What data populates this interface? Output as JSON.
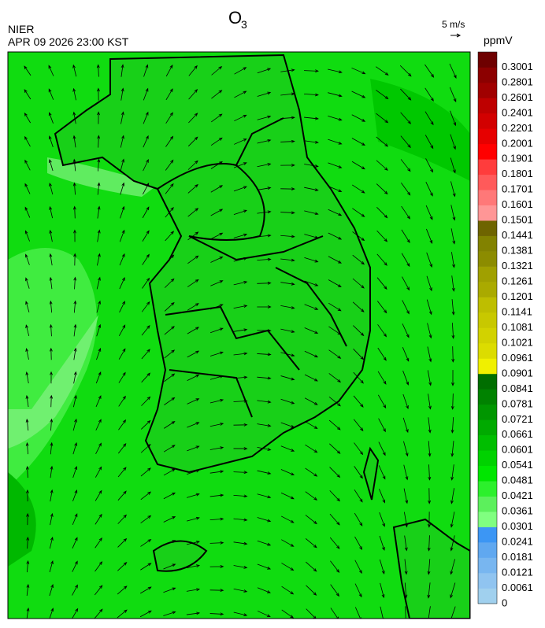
{
  "header": {
    "title": "O",
    "title_sub": "3",
    "agency": "NIER",
    "datetime": "APR 09 2026 23:00 KST"
  },
  "wind_legend": {
    "label": "5 m/s"
  },
  "colorbar": {
    "unit": "ppmV",
    "entries": [
      {
        "label": "0",
        "color": "#a0d0ee"
      },
      {
        "label": "0.0061",
        "color": "#90c4f0"
      },
      {
        "label": "0.0121",
        "color": "#78b6f0"
      },
      {
        "label": "0.0181",
        "color": "#60a8f0"
      },
      {
        "label": "0.0241",
        "color": "#3c96f4"
      },
      {
        "label": "0.0301",
        "color": "#80ff80"
      },
      {
        "label": "0.0361",
        "color": "#5cf05c"
      },
      {
        "label": "0.0421",
        "color": "#2cf02c"
      },
      {
        "label": "0.0481",
        "color": "#00e600"
      },
      {
        "label": "0.0541",
        "color": "#00d200"
      },
      {
        "label": "0.0601",
        "color": "#00be00"
      },
      {
        "label": "0.0661",
        "color": "#00aa00"
      },
      {
        "label": "0.0721",
        "color": "#009600"
      },
      {
        "label": "0.0781",
        "color": "#008200"
      },
      {
        "label": "0.0841",
        "color": "#006e00"
      },
      {
        "label": "0.0901",
        "color": "#f0f000"
      },
      {
        "label": "0.0961",
        "color": "#dcdc00"
      },
      {
        "label": "0.1021",
        "color": "#d2d200"
      },
      {
        "label": "0.1081",
        "color": "#c8c800"
      },
      {
        "label": "0.1141",
        "color": "#bebe00"
      },
      {
        "label": "0.1201",
        "color": "#aaaa00"
      },
      {
        "label": "0.1261",
        "color": "#a0a000"
      },
      {
        "label": "0.1321",
        "color": "#8c8c00"
      },
      {
        "label": "0.1381",
        "color": "#828200"
      },
      {
        "label": "0.1441",
        "color": "#6e6400"
      },
      {
        "label": "0.1501",
        "color": "#ff9696"
      },
      {
        "label": "0.1601",
        "color": "#ff7878"
      },
      {
        "label": "0.1701",
        "color": "#ff5a5a"
      },
      {
        "label": "0.1801",
        "color": "#ff3c3c"
      },
      {
        "label": "0.1901",
        "color": "#ff0000"
      },
      {
        "label": "0.2001",
        "color": "#e60000"
      },
      {
        "label": "0.2201",
        "color": "#d20000"
      },
      {
        "label": "0.2401",
        "color": "#be0000"
      },
      {
        "label": "0.2601",
        "color": "#a00000"
      },
      {
        "label": "0.2801",
        "color": "#8c0000"
      },
      {
        "label": "0.3001",
        "color": "#6e0000"
      }
    ]
  }
}
